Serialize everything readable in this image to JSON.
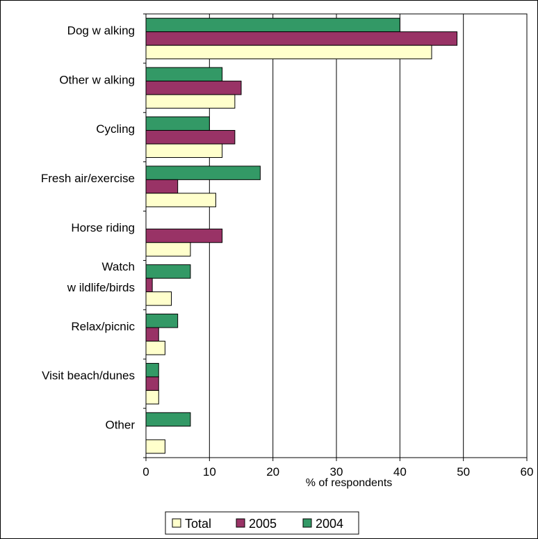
{
  "chart_data": {
    "type": "bar",
    "orientation": "horizontal",
    "categories": [
      [
        "Dog w alking"
      ],
      [
        "Other w alking"
      ],
      [
        "Cycling"
      ],
      [
        "Fresh air/exercise"
      ],
      [
        "Horse riding"
      ],
      [
        "Watch",
        "w ildlife/birds"
      ],
      [
        "Relax/picnic"
      ],
      [
        "Visit beach/dunes"
      ],
      [
        "Other"
      ]
    ],
    "series": [
      {
        "name": "2004",
        "color": "#339966",
        "values": [
          40,
          12,
          10,
          18,
          0,
          7,
          5,
          2,
          7
        ]
      },
      {
        "name": "2005",
        "color": "#993366",
        "values": [
          49,
          15,
          14,
          5,
          12,
          1,
          2,
          2,
          0
        ]
      },
      {
        "name": "Total",
        "color": "#FFFFCC",
        "values": [
          45,
          14,
          12,
          11,
          7,
          4,
          3,
          2,
          3
        ]
      }
    ],
    "legend_order": [
      "Total",
      "2005",
      "2004"
    ],
    "xlabel": "% of respondents",
    "ylabel": "",
    "xlim": [
      0,
      60
    ],
    "ticks": [
      "0",
      "10",
      "20",
      "30",
      "40",
      "50",
      "60"
    ],
    "grid": "vertical",
    "legend_position": "bottom"
  }
}
